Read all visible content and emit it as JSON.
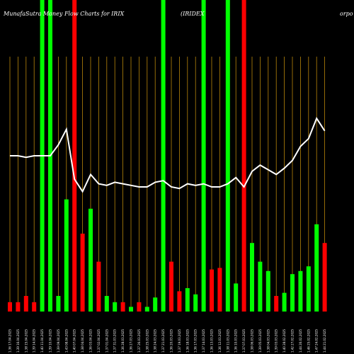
{
  "header": {
    "left": "MunafaSutra Money Flow Charts for IRIX",
    "center": "(IRIDEX",
    "right": "orpo"
  },
  "colors": {
    "background": "#000000",
    "up": "#00ff00",
    "down": "#ff0000",
    "grid": "#b8860b",
    "price": "#ffffff"
  },
  "chart_data": {
    "type": "bar",
    "title": "MunafaSutra Money Flow Charts for IRIX",
    "ylim": [
      0,
      100
    ],
    "grid": "vertical",
    "categories": [
      "1.36 17.04.2025",
      "1.39 16.04.2025",
      "1.38 15.04.2025",
      "1.39 14.04.2025",
      "1.40 11.04.2025",
      "1.39 10.04.2025",
      "1.39 09.04.2025",
      "1.43 08.04.2025",
      "1.40 07.04.2025",
      "1.38 04.04.2025",
      "1.36 03.04.2025",
      "1.37 02.04.2025",
      "1.37 01.04.2025",
      "1.37 31.03.2025",
      "1.36 28.03.2025",
      "1.36 27.03.2025",
      "1.37 26.03.2025",
      "1.38 25.03.2025",
      "1.38 24.03.2025",
      "1.37 21.03.2025",
      "1.36 20.03.2025",
      "1.37 19.03.2025",
      "1.36 18.03.2025",
      "1.36 17.03.2025",
      "1.37 14.03.2025",
      "1.36 13.03.2025",
      "1.36 12.03.2025",
      "1.38 11.03.2025",
      "1.36 10.03.2025",
      "1.37 07.03.2025",
      "1.38 06.03.2025",
      "1.39 05.03.2025",
      "1.38 04.03.2025",
      "1.39 03.03.2025",
      "1.40 28.02.2025",
      "1.42 27.02.2025",
      "1.44 26.02.2025",
      "1.46 25.02.2025",
      "1.47 24.02.2025",
      "1.44 21.02.2025"
    ],
    "series": [
      {
        "values": [
          3,
          3,
          5,
          3,
          100,
          100,
          5,
          36,
          100,
          25,
          33,
          16,
          5,
          3,
          3,
          1.5,
          3,
          1.5,
          4.5,
          100,
          16,
          6.5,
          7.5,
          5.5,
          100,
          13.5,
          14,
          100,
          9,
          100,
          22,
          16,
          13,
          5,
          6,
          12,
          13,
          14.5,
          28,
          22
        ],
        "direction": [
          "down",
          "down",
          "down",
          "down",
          "up",
          "up",
          "up",
          "up",
          "down",
          "down",
          "up",
          "down",
          "up",
          "up",
          "down",
          "up",
          "down",
          "up",
          "up",
          "up",
          "down",
          "down",
          "up",
          "up",
          "up",
          "down",
          "down",
          "up",
          "up",
          "down",
          "up",
          "up",
          "up",
          "down",
          "up",
          "up",
          "up",
          "up",
          "up",
          "down"
        ]
      },
      {
        "values": [
          50,
          50,
          49.5,
          50,
          50,
          50,
          53.5,
          58.5,
          42.5,
          38.5,
          44,
          41,
          40.5,
          41.5,
          41,
          40.5,
          40,
          40,
          41.5,
          42,
          40,
          39.5,
          41,
          40.5,
          41,
          40,
          40,
          41,
          43,
          40,
          45,
          47,
          45.5,
          44,
          46,
          48.5,
          53,
          55.5,
          62,
          58
        ]
      }
    ]
  }
}
